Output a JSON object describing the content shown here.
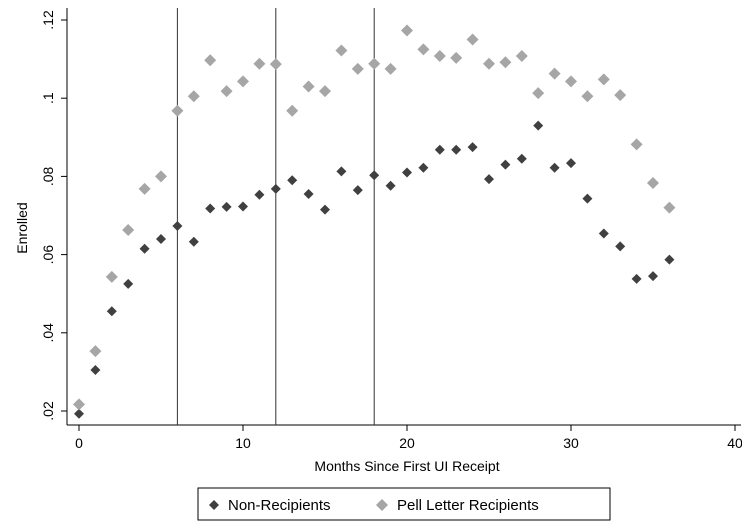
{
  "chart_data": {
    "type": "scatter",
    "xlabel": "Months Since First UI Receipt",
    "ylabel": "Enrolled",
    "xlim": [
      0,
      40
    ],
    "ylim": [
      0.02,
      0.12
    ],
    "x_ticks": [
      0,
      10,
      20,
      30,
      40
    ],
    "x_tick_labels": [
      "0",
      "10",
      "20",
      "30",
      "40"
    ],
    "y_ticks": [
      0.02,
      0.04,
      0.06,
      0.08,
      0.1,
      0.12
    ],
    "y_tick_labels": [
      ".02",
      ".04",
      ".06",
      ".08",
      ".1",
      ".12"
    ],
    "vertical_lines": [
      6,
      12,
      18
    ],
    "grid": false,
    "legend_position": "bottom",
    "series": [
      {
        "name": "Non-Recipients",
        "color": "#404040",
        "marker": "diamond",
        "x": [
          0,
          1,
          2,
          3,
          4,
          5,
          6,
          7,
          8,
          9,
          10,
          11,
          12,
          13,
          14,
          15,
          16,
          17,
          18,
          19,
          20,
          21,
          22,
          23,
          24,
          25,
          26,
          27,
          28,
          29,
          30,
          31,
          32,
          33,
          34,
          35,
          36
        ],
        "y": [
          0.0193,
          0.0305,
          0.0455,
          0.0525,
          0.0615,
          0.064,
          0.0673,
          0.0633,
          0.0718,
          0.0722,
          0.0723,
          0.0753,
          0.0768,
          0.079,
          0.0755,
          0.0715,
          0.0813,
          0.0765,
          0.0803,
          0.0776,
          0.081,
          0.0822,
          0.0868,
          0.0868,
          0.0875,
          0.0793,
          0.083,
          0.0845,
          0.093,
          0.0822,
          0.0834,
          0.0743,
          0.0654,
          0.0621,
          0.0538,
          0.0545,
          0.0587
        ]
      },
      {
        "name": "Pell Letter Recipients",
        "color": "#a6a6a6",
        "marker": "diamond",
        "x": [
          0,
          1,
          2,
          3,
          4,
          5,
          6,
          7,
          8,
          9,
          10,
          11,
          12,
          13,
          14,
          15,
          16,
          17,
          18,
          19,
          20,
          21,
          22,
          23,
          24,
          25,
          26,
          27,
          28,
          29,
          30,
          31,
          32,
          33,
          34,
          35,
          36
        ],
        "y": [
          0.0217,
          0.0353,
          0.0543,
          0.0663,
          0.0768,
          0.08,
          0.0968,
          0.1005,
          0.1097,
          0.1018,
          0.1043,
          0.1088,
          0.1087,
          0.0968,
          0.103,
          0.1018,
          0.1122,
          0.1075,
          0.1088,
          0.1075,
          0.1173,
          0.1125,
          0.1108,
          0.1103,
          0.115,
          0.1088,
          0.1092,
          0.1108,
          0.1013,
          0.1063,
          0.1043,
          0.1005,
          0.1048,
          0.1008,
          0.0882,
          0.0783,
          0.072
        ]
      }
    ]
  }
}
